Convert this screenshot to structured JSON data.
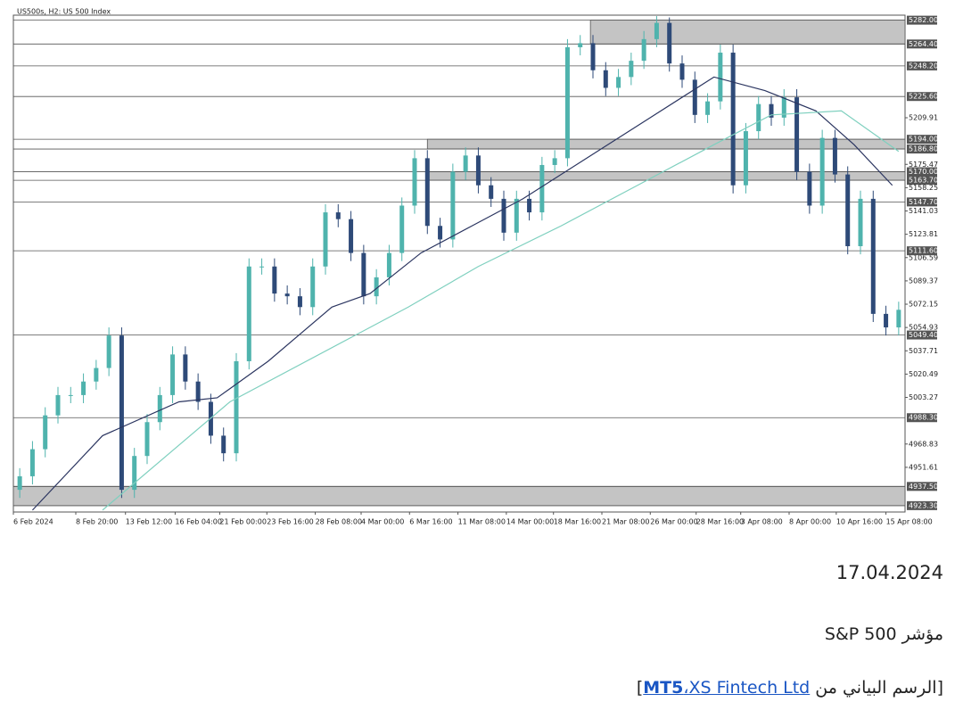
{
  "chart_data": {
    "type": "candlestick",
    "title": "US500s, H2:  US 500 Index",
    "xlim": [
      0,
      70
    ],
    "xticks": [
      {
        "value": 0,
        "label": "6 Feb 2024"
      },
      {
        "value": 4.9,
        "label": "8 Feb 20:00"
      },
      {
        "value": 8.8,
        "label": "13 Feb 12:00"
      },
      {
        "value": 12.7,
        "label": "16 Feb 04:00"
      },
      {
        "value": 16.2,
        "label": "21 Feb 00:00"
      },
      {
        "value": 19.9,
        "label": "23 Feb 16:00"
      },
      {
        "value": 23.7,
        "label": "28 Feb 08:00"
      },
      {
        "value": 27.3,
        "label": "4 Mar 00:00"
      },
      {
        "value": 31.1,
        "label": "6 Mar 16:00"
      },
      {
        "value": 34.9,
        "label": "11 Mar 08:00"
      },
      {
        "value": 38.7,
        "label": "14 Mar 00:00"
      },
      {
        "value": 42.4,
        "label": "18 Mar 16:00"
      },
      {
        "value": 46.2,
        "label": "21 Mar 08:00"
      },
      {
        "value": 50,
        "label": "26 Mar 00:00"
      },
      {
        "value": 53.6,
        "label": "28 Mar 16:00"
      },
      {
        "value": 57.1,
        "label": "3 Apr 08:00"
      },
      {
        "value": 60.9,
        "label": "8 Apr 00:00"
      },
      {
        "value": 64.6,
        "label": "10 Apr 16:00"
      },
      {
        "value": 68.5,
        "label": "15 Apr 08:00"
      }
    ],
    "ylim": [
      4918.6,
      5285.7
    ],
    "yticks": [
      5209.91,
      5175.47,
      5158.25,
      5141.03,
      5123.81,
      5106.59,
      5089.37,
      5072.15,
      5054.93,
      5037.71,
      5020.49,
      5003.27,
      4968.83,
      4951.61
    ],
    "up_color": "#4fb3ad",
    "down_color": "#2e4a78",
    "candles": {
      "open": [
        4935,
        4945,
        4965,
        4990,
        5005,
        5005,
        5015,
        5025,
        5049,
        4935,
        4960,
        4985,
        5005,
        5035,
        5015,
        5000,
        4975,
        4962,
        5030,
        5100,
        5100,
        5080,
        5078,
        5070,
        5100,
        5140,
        5135,
        5110,
        5078,
        5092,
        5110,
        5145,
        5180,
        5130,
        5120,
        5170,
        5182,
        5160,
        5150,
        5125,
        5150,
        5140,
        5175,
        5180,
        5262,
        5265,
        5245,
        5232,
        5240,
        5252,
        5268,
        5280,
        5250,
        5238,
        5212,
        5222,
        5258,
        5160,
        5200,
        5220,
        5210,
        5225,
        5170,
        5145,
        5195,
        5168,
        5115,
        5150,
        5065,
        5055
      ],
      "high": [
        4951,
        4971,
        4996,
        5011,
        5011,
        5021,
        5031,
        5055,
        5055,
        4966,
        4991,
        5011,
        5041,
        5041,
        5021,
        5006,
        4981,
        5036,
        5106,
        5106,
        5106,
        5086,
        5084,
        5106,
        5146,
        5146,
        5141,
        5116,
        5098,
        5116,
        5151,
        5186,
        5186,
        5136,
        5176,
        5188,
        5188,
        5166,
        5156,
        5156,
        5156,
        5181,
        5186,
        5268,
        5271,
        5271,
        5251,
        5246,
        5258,
        5274,
        5285,
        5284,
        5256,
        5244,
        5228,
        5264,
        5264,
        5206,
        5226,
        5226,
        5231,
        5231,
        5176,
        5201,
        5201,
        5174,
        5156,
        5156,
        5071,
        5074
      ],
      "low": [
        4929,
        4939,
        4959,
        4984,
        4999,
        4999,
        5009,
        5019,
        4929,
        4929,
        4954,
        4979,
        4999,
        5009,
        4994,
        4969,
        4956,
        4956,
        5024,
        5094,
        5074,
        5072,
        5064,
        5064,
        5094,
        5129,
        5104,
        5072,
        5072,
        5086,
        5104,
        5139,
        5124,
        5114,
        5114,
        5164,
        5154,
        5144,
        5119,
        5119,
        5134,
        5134,
        5169,
        5174,
        5256,
        5239,
        5226,
        5226,
        5234,
        5246,
        5262,
        5244,
        5232,
        5206,
        5206,
        5216,
        5154,
        5154,
        5194,
        5204,
        5204,
        5164,
        5139,
        5139,
        5162,
        5109,
        5109,
        5059,
        5049,
        5049
      ],
      "close": [
        4945,
        4965,
        4990,
        5005,
        5005,
        5015,
        5025,
        5049,
        4935,
        4960,
        4985,
        5005,
        5035,
        5015,
        5000,
        4975,
        4962,
        5030,
        5100,
        5100,
        5080,
        5078,
        5070,
        5100,
        5140,
        5135,
        5110,
        5078,
        5092,
        5110,
        5145,
        5180,
        5130,
        5120,
        5170,
        5182,
        5160,
        5150,
        5125,
        5150,
        5140,
        5175,
        5180,
        5262,
        5265,
        5245,
        5232,
        5240,
        5252,
        5268,
        5280,
        5250,
        5238,
        5212,
        5222,
        5258,
        5160,
        5200,
        5220,
        5210,
        5225,
        5170,
        5145,
        5195,
        5168,
        5115,
        5150,
        5065,
        5055,
        5068
      ]
    },
    "lines": [
      {
        "color": "#2b3560",
        "x": [
          1.5,
          7,
          13,
          16,
          20,
          25,
          28,
          32,
          36,
          40,
          45,
          50,
          55,
          59,
          63,
          66,
          69
        ],
        "values": [
          4920,
          4975,
          5000,
          5003,
          5030,
          5070,
          5080,
          5110,
          5130,
          5150,
          5180,
          5210,
          5240,
          5230,
          5215,
          5190,
          5160
        ]
      },
      {
        "color": "#7fd0bf",
        "x": [
          7,
          17,
          27,
          31,
          36.5,
          43,
          49,
          55,
          59.5,
          65,
          69.5
        ],
        "values": [
          4920,
          5000,
          5050,
          5070,
          5100,
          5130,
          5160,
          5190,
          5212,
          5215,
          5185
        ]
      }
    ],
    "levels": [
      {
        "value": 5282,
        "label": "5282.00"
      },
      {
        "value": 5264.4,
        "label": "5264.40"
      },
      {
        "value": 5248.2,
        "label": "5248.20"
      },
      {
        "value": 5225.6,
        "label": "5225.60"
      },
      {
        "value": 5194,
        "label": "5194.00"
      },
      {
        "value": 5186.8,
        "label": "5186.80"
      },
      {
        "value": 5170,
        "label": "5170.00"
      },
      {
        "value": 5163.7,
        "label": "5163.70"
      },
      {
        "value": 5147.7,
        "label": "5147.70"
      },
      {
        "value": 5111.6,
        "label": "5111.60"
      },
      {
        "value": 5049.4,
        "label": "5049.40"
      },
      {
        "value": 4988.3,
        "label": "4988.30"
      },
      {
        "value": 4937.5,
        "label": "4937.50"
      },
      {
        "value": 4923.3,
        "label": "4923.30"
      }
    ],
    "zones": [
      {
        "levels": [
          0,
          1
        ],
        "start": 45.3
      },
      {
        "levels": [
          4,
          5
        ],
        "start": 32.5
      },
      {
        "levels": [
          6,
          7
        ],
        "start": 32.5
      },
      {
        "levels": [
          12,
          13
        ],
        "start": 0
      }
    ]
  },
  "caption": {
    "date": "17.04.2024",
    "title": "مؤشر S&P 500",
    "source": {
      "prefix": "[الرسم البياني من ",
      "platform": "MT5",
      "separator": "،",
      "provider": "XS Fintech Ltd",
      "suffix": "]"
    }
  }
}
